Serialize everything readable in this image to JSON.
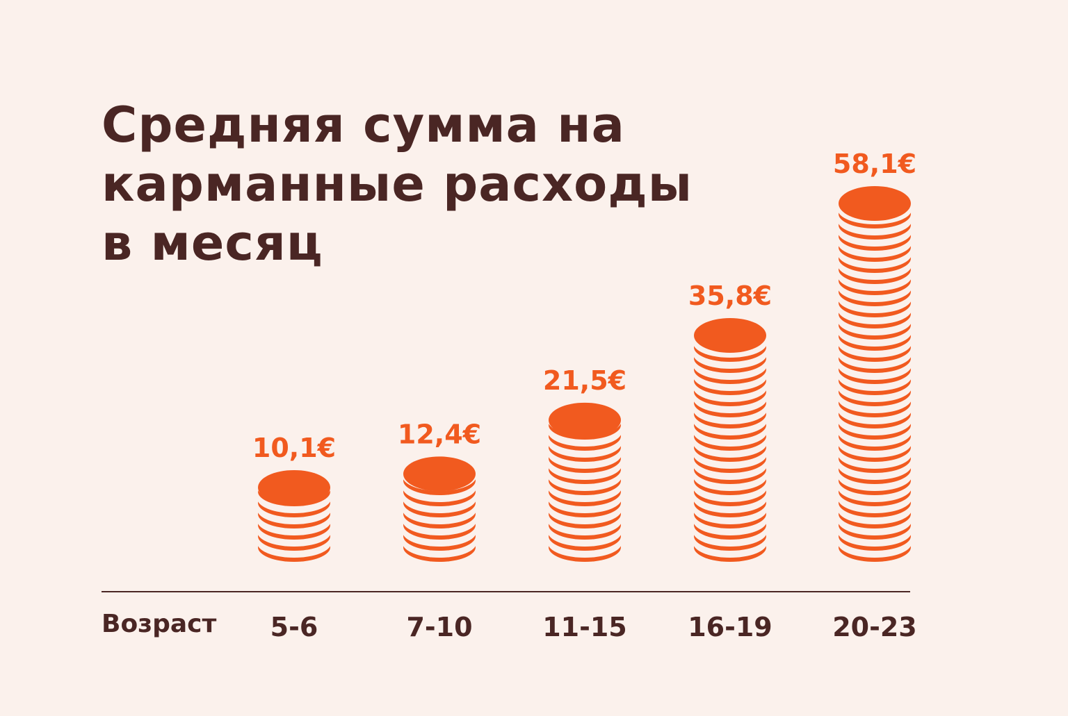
{
  "colors": {
    "background": "#fbf1ec",
    "text_dark": "#4a2624",
    "accent": "#f15a1f"
  },
  "chart_data": {
    "type": "bar",
    "title": "Средняя сумма на карманные расходы в месяц",
    "title_lines": [
      "Средняя сумма на",
      "карманные расходы",
      "в месяц"
    ],
    "xlabel": "Возраст",
    "ylabel": "",
    "categories": [
      "5-6",
      "7-10",
      "11-15",
      "16-19",
      "20-23"
    ],
    "values": [
      10.1,
      12.4,
      21.5,
      35.8,
      58.1
    ],
    "data_labels": [
      "10,1€",
      "12,4€",
      "21,5€",
      "35,8€",
      "58,1€"
    ],
    "mark_style": "stacked coins",
    "ylim": [
      0,
      60
    ],
    "grid": false,
    "legend": "none"
  }
}
